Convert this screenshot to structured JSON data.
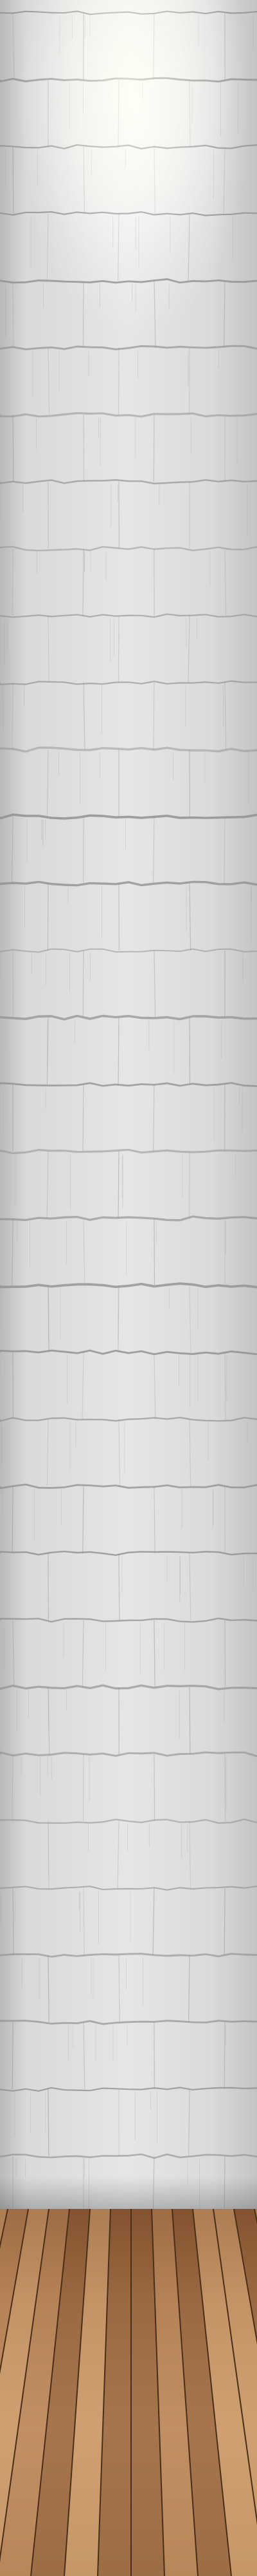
{
  "scene": {
    "elements": [
      "painted-brick-wall",
      "wooden-floor"
    ],
    "colors": {
      "wall_base": "#d8d8d8",
      "wall_light": "#f4f4f4",
      "mortar": "#8c8c8c",
      "floor_dark": "#7a4c2a",
      "floor_mid": "#b58258",
      "floor_light": "#d4a878",
      "plank_gap": "#4a2e18"
    }
  }
}
